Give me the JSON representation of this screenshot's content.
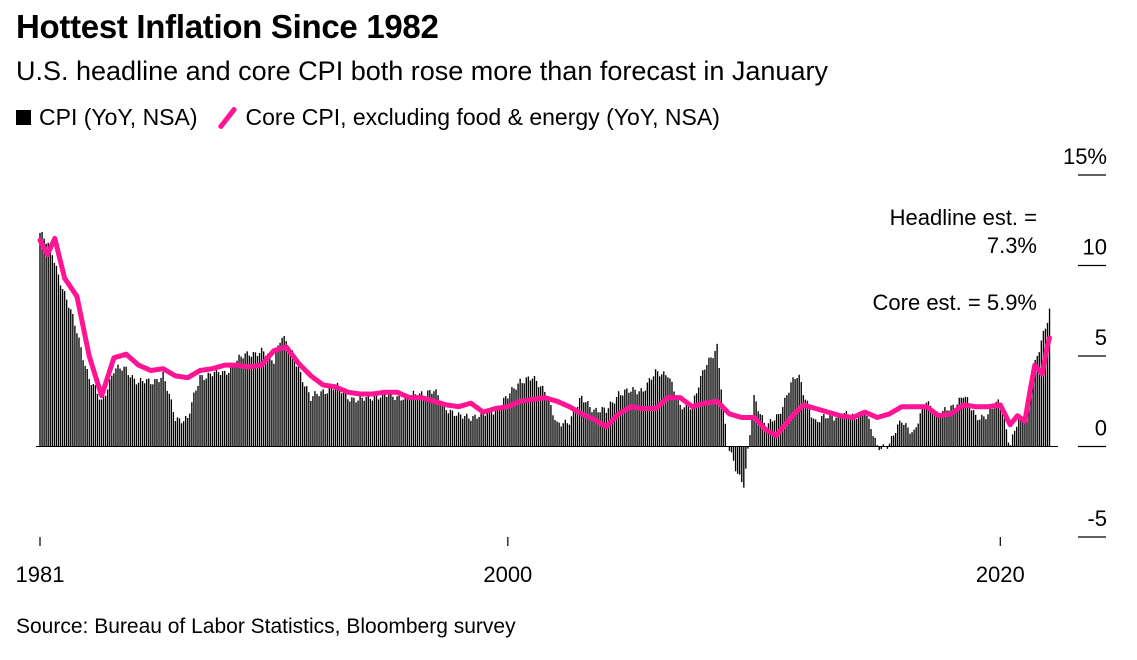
{
  "chart_data": {
    "type": "bar",
    "title": "Hottest Inflation Since 1982",
    "subtitle": "U.S. headline and core CPI both rose more than forecast in January",
    "source": "Source: Bureau of Labor Statistics, Bloomberg survey",
    "ylim": [
      -5,
      15
    ],
    "yticks": [
      {
        "value": 15,
        "label": "15%"
      },
      {
        "value": 10,
        "label": "10"
      },
      {
        "value": 5,
        "label": "5"
      },
      {
        "value": 0,
        "label": "0"
      },
      {
        "value": -5,
        "label": "-5"
      }
    ],
    "xlim": [
      1981,
      2022.1
    ],
    "xticks": [
      {
        "value": 1981,
        "label": "1981"
      },
      {
        "value": 2000,
        "label": "2000"
      },
      {
        "value": 2020,
        "label": "2020"
      }
    ],
    "legend_position": "top-left",
    "annotations": [
      {
        "text_lines": [
          "Headline est. =",
          "7.3%"
        ]
      },
      {
        "text_lines": [
          "Core est. = 5.9%"
        ]
      }
    ],
    "series": [
      {
        "name": "CPI (YoY, NSA)",
        "kind": "bar",
        "color": "#000000",
        "points": [
          [
            1981.0,
            11.8
          ],
          [
            1981.5,
            10.7
          ],
          [
            1982.0,
            8.4
          ],
          [
            1982.5,
            6.4
          ],
          [
            1983.0,
            3.7
          ],
          [
            1983.5,
            2.5
          ],
          [
            1984.0,
            4.2
          ],
          [
            1984.5,
            4.3
          ],
          [
            1985.0,
            3.5
          ],
          [
            1985.5,
            3.6
          ],
          [
            1986.0,
            3.9
          ],
          [
            1986.5,
            1.6
          ],
          [
            1987.0,
            1.5
          ],
          [
            1987.5,
            3.9
          ],
          [
            1988.0,
            4.0
          ],
          [
            1988.5,
            4.1
          ],
          [
            1989.0,
            4.7
          ],
          [
            1989.5,
            5.2
          ],
          [
            1990.0,
            5.2
          ],
          [
            1990.5,
            4.8
          ],
          [
            1990.8,
            6.2
          ],
          [
            1991.0,
            5.7
          ],
          [
            1991.5,
            4.4
          ],
          [
            1992.0,
            2.6
          ],
          [
            1992.5,
            3.1
          ],
          [
            1993.0,
            3.3
          ],
          [
            1993.5,
            2.8
          ],
          [
            1994.0,
            2.5
          ],
          [
            1994.5,
            2.8
          ],
          [
            1995.0,
            2.8
          ],
          [
            1995.5,
            2.8
          ],
          [
            1996.0,
            2.7
          ],
          [
            1996.5,
            3.0
          ],
          [
            1997.0,
            3.0
          ],
          [
            1997.5,
            2.2
          ],
          [
            1998.0,
            1.6
          ],
          [
            1998.5,
            1.7
          ],
          [
            1999.0,
            1.7
          ],
          [
            1999.5,
            2.1
          ],
          [
            2000.0,
            2.7
          ],
          [
            2000.5,
            3.7
          ],
          [
            2001.0,
            3.7
          ],
          [
            2001.5,
            3.2
          ],
          [
            2002.0,
            1.1
          ],
          [
            2002.5,
            1.5
          ],
          [
            2003.0,
            2.6
          ],
          [
            2003.5,
            2.1
          ],
          [
            2004.0,
            1.9
          ],
          [
            2004.5,
            3.0
          ],
          [
            2005.0,
            3.0
          ],
          [
            2005.5,
            3.2
          ],
          [
            2006.0,
            4.0
          ],
          [
            2006.5,
            4.1
          ],
          [
            2007.0,
            2.1
          ],
          [
            2007.5,
            2.4
          ],
          [
            2008.0,
            4.3
          ],
          [
            2008.5,
            5.6
          ],
          [
            2008.9,
            0.1
          ],
          [
            2009.3,
            -1.3
          ],
          [
            2009.6,
            -2.1
          ],
          [
            2010.0,
            2.6
          ],
          [
            2010.5,
            1.2
          ],
          [
            2011.0,
            1.6
          ],
          [
            2011.5,
            3.6
          ],
          [
            2011.8,
            3.9
          ],
          [
            2012.0,
            2.9
          ],
          [
            2012.5,
            1.4
          ],
          [
            2013.0,
            1.6
          ],
          [
            2013.5,
            1.8
          ],
          [
            2014.0,
            1.6
          ],
          [
            2014.5,
            2.0
          ],
          [
            2015.0,
            -0.1
          ],
          [
            2015.5,
            0.2
          ],
          [
            2016.0,
            1.4
          ],
          [
            2016.5,
            0.8
          ],
          [
            2017.0,
            2.5
          ],
          [
            2017.5,
            1.7
          ],
          [
            2018.0,
            2.1
          ],
          [
            2018.5,
            2.9
          ],
          [
            2019.0,
            1.6
          ],
          [
            2019.5,
            1.8
          ],
          [
            2020.0,
            2.5
          ],
          [
            2020.4,
            0.1
          ],
          [
            2020.7,
            1.3
          ],
          [
            2021.0,
            1.4
          ],
          [
            2021.3,
            4.2
          ],
          [
            2021.6,
            5.4
          ],
          [
            2021.9,
            6.8
          ],
          [
            2022.0,
            7.5
          ]
        ]
      },
      {
        "name": "Core CPI, excluding food & energy (YoY, NSA)",
        "kind": "line",
        "color": "#ff1493",
        "points": [
          [
            1981.0,
            11.4
          ],
          [
            1981.3,
            10.6
          ],
          [
            1981.6,
            11.5
          ],
          [
            1982.0,
            9.3
          ],
          [
            1982.5,
            8.3
          ],
          [
            1983.0,
            5.0
          ],
          [
            1983.5,
            2.8
          ],
          [
            1984.0,
            4.9
          ],
          [
            1984.5,
            5.1
          ],
          [
            1985.0,
            4.5
          ],
          [
            1985.5,
            4.2
          ],
          [
            1986.0,
            4.3
          ],
          [
            1986.5,
            3.9
          ],
          [
            1987.0,
            3.8
          ],
          [
            1987.5,
            4.2
          ],
          [
            1988.0,
            4.3
          ],
          [
            1988.5,
            4.5
          ],
          [
            1989.0,
            4.5
          ],
          [
            1989.5,
            4.4
          ],
          [
            1990.0,
            4.5
          ],
          [
            1990.5,
            5.3
          ],
          [
            1991.0,
            5.5
          ],
          [
            1991.5,
            4.6
          ],
          [
            1992.0,
            3.9
          ],
          [
            1992.5,
            3.4
          ],
          [
            1993.0,
            3.3
          ],
          [
            1993.5,
            3.0
          ],
          [
            1994.0,
            2.9
          ],
          [
            1994.5,
            2.9
          ],
          [
            1995.0,
            3.0
          ],
          [
            1995.5,
            3.0
          ],
          [
            1996.0,
            2.7
          ],
          [
            1996.5,
            2.7
          ],
          [
            1997.0,
            2.5
          ],
          [
            1997.5,
            2.3
          ],
          [
            1998.0,
            2.2
          ],
          [
            1998.5,
            2.4
          ],
          [
            1999.0,
            1.9
          ],
          [
            1999.5,
            2.1
          ],
          [
            2000.0,
            2.2
          ],
          [
            2000.5,
            2.5
          ],
          [
            2001.0,
            2.6
          ],
          [
            2001.5,
            2.7
          ],
          [
            2002.0,
            2.5
          ],
          [
            2002.5,
            2.2
          ],
          [
            2003.0,
            1.8
          ],
          [
            2003.5,
            1.5
          ],
          [
            2004.0,
            1.1
          ],
          [
            2004.5,
            1.8
          ],
          [
            2005.0,
            2.2
          ],
          [
            2005.5,
            2.1
          ],
          [
            2006.0,
            2.1
          ],
          [
            2006.5,
            2.7
          ],
          [
            2007.0,
            2.7
          ],
          [
            2007.5,
            2.2
          ],
          [
            2008.0,
            2.4
          ],
          [
            2008.5,
            2.5
          ],
          [
            2009.0,
            1.8
          ],
          [
            2009.5,
            1.6
          ],
          [
            2010.0,
            1.6
          ],
          [
            2010.5,
            0.9
          ],
          [
            2010.9,
            0.6
          ],
          [
            2011.5,
            1.6
          ],
          [
            2012.0,
            2.3
          ],
          [
            2012.5,
            2.1
          ],
          [
            2013.0,
            1.9
          ],
          [
            2013.5,
            1.7
          ],
          [
            2014.0,
            1.6
          ],
          [
            2014.5,
            1.9
          ],
          [
            2015.0,
            1.6
          ],
          [
            2015.5,
            1.8
          ],
          [
            2016.0,
            2.2
          ],
          [
            2016.5,
            2.2
          ],
          [
            2017.0,
            2.2
          ],
          [
            2017.5,
            1.7
          ],
          [
            2018.0,
            1.8
          ],
          [
            2018.5,
            2.3
          ],
          [
            2019.0,
            2.2
          ],
          [
            2019.5,
            2.2
          ],
          [
            2020.0,
            2.3
          ],
          [
            2020.4,
            1.2
          ],
          [
            2020.7,
            1.7
          ],
          [
            2021.0,
            1.4
          ],
          [
            2021.2,
            3.0
          ],
          [
            2021.4,
            4.5
          ],
          [
            2021.7,
            4.0
          ],
          [
            2021.9,
            5.5
          ],
          [
            2022.0,
            6.0
          ]
        ]
      }
    ]
  }
}
